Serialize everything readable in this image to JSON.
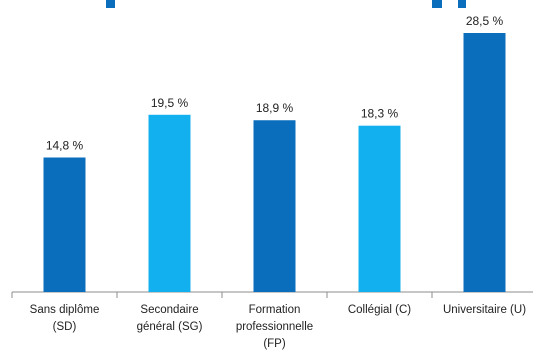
{
  "chart_data": {
    "type": "bar",
    "categories": [
      [
        "Sans diplôme",
        "(SD)"
      ],
      [
        "Secondaire",
        "général (SG)"
      ],
      [
        "Formation",
        "professionnelle",
        "(FP)"
      ],
      [
        "Collégial (C)"
      ],
      [
        "Universitaire (U)"
      ]
    ],
    "values": [
      14.8,
      19.5,
      18.9,
      18.3,
      28.5
    ],
    "value_labels": [
      "14,8 %",
      "19,5 %",
      "18,9 %",
      "18,3 %",
      "28,5 %"
    ],
    "bar_colors": [
      "#0a6ebd",
      "#12b0ee",
      "#0a6ebd",
      "#12b0ee",
      "#0a6ebd"
    ],
    "ylim": [
      0,
      28.5
    ],
    "grid": false,
    "legend": "none",
    "title_color": "#0a6ebd"
  }
}
